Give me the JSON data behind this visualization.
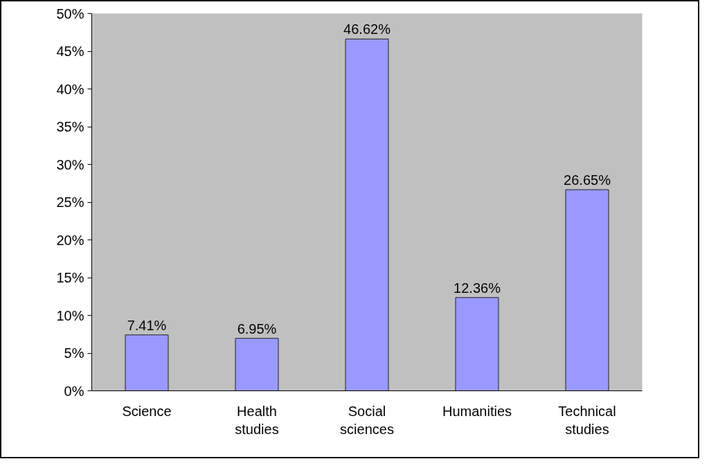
{
  "chart_data": {
    "type": "bar",
    "categories": [
      "Science",
      "Health\nstudies",
      "Social\nsciences",
      "Humanities",
      "Technical\nstudies"
    ],
    "values": [
      7.41,
      6.95,
      46.62,
      12.36,
      26.65
    ],
    "value_labels": [
      "7.41%",
      "6.95%",
      "46.62%",
      "12.36%",
      "26.65%"
    ],
    "color": "#9999ff",
    "ylim": [
      0,
      50
    ],
    "yticks": [
      {
        "value": 0,
        "label": "0%"
      },
      {
        "value": 5,
        "label": "5%"
      },
      {
        "value": 10,
        "label": "10%"
      },
      {
        "value": 15,
        "label": "15%"
      },
      {
        "value": 20,
        "label": "20%"
      },
      {
        "value": 25,
        "label": "25%"
      },
      {
        "value": 30,
        "label": "30%"
      },
      {
        "value": 35,
        "label": "35%"
      },
      {
        "value": 40,
        "label": "40%"
      },
      {
        "value": 45,
        "label": "45%"
      },
      {
        "value": 50,
        "label": "50%"
      }
    ],
    "grid": false
  }
}
